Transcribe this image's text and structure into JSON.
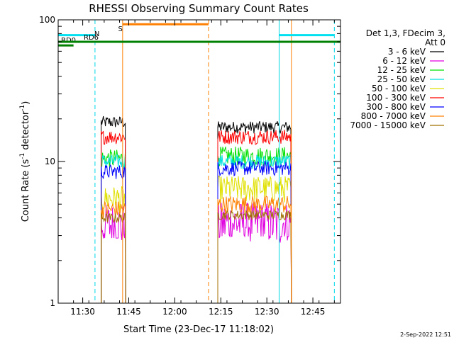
{
  "chart_data": {
    "type": "line",
    "title": "RHESSI Observing Summary Count Rates",
    "xlabel": "Start Time (23-Dec-17 11:18:02)",
    "ylabel_main": "Count Rate (s",
    "ylabel_sup1": "-1",
    "ylabel_mid": " detector",
    "ylabel_sup2": "-1",
    "ylabel_end": ")",
    "yscale": "log",
    "ylim": [
      1,
      100
    ],
    "xlim_minutes": [
      "11:22",
      "12:54"
    ],
    "x_ticks": [
      "11:30",
      "11:45",
      "12:00",
      "12:15",
      "12:30",
      "12:45"
    ],
    "y_ticks": [
      "1",
      "10",
      "100"
    ],
    "legend_header": [
      "Det 1,3, FDecim 3,",
      "Att 0"
    ],
    "legend_position": "right",
    "timestamp": "2-Sep-2022 12:51",
    "segments": [
      {
        "start": "11:36",
        "end": "11:44"
      },
      {
        "start": "12:14",
        "end": "12:38"
      }
    ],
    "series": [
      {
        "name": "3 - 6 keV",
        "color": "#000000",
        "level1": 19,
        "level2": 17.5,
        "noise": 0.1
      },
      {
        "name": "6 - 12 keV",
        "color": "#e000e0",
        "level1": 3.6,
        "level2": 3.7,
        "noise": 0.4
      },
      {
        "name": "12 - 25 keV",
        "color": "#00e000",
        "level1": 10.5,
        "level2": 11,
        "noise": 0.16
      },
      {
        "name": "25 - 50 keV",
        "color": "#00e0e0",
        "level1": 10,
        "level2": 10,
        "noise": 0.12
      },
      {
        "name": "50 - 100 keV",
        "color": "#e0e000",
        "level1": 5.5,
        "level2": 6.5,
        "noise": 0.22
      },
      {
        "name": "100 - 300 keV",
        "color": "#ff0000",
        "level1": 15,
        "level2": 15,
        "noise": 0.12
      },
      {
        "name": "300 - 800 keV",
        "color": "#0000ff",
        "level1": 8.5,
        "level2": 9,
        "noise": 0.12
      },
      {
        "name": "800 - 7000 keV",
        "color": "#ff8000",
        "level1": 4.6,
        "level2": 5,
        "noise": 0.15
      },
      {
        "name": "7000 - 15000 keV",
        "color": "#a07000",
        "level1": 4.0,
        "level2": 4.2,
        "noise": 0.08
      }
    ],
    "annotations": [
      {
        "label": "RD0",
        "color": "#008000",
        "level": 66,
        "x0": "11:22",
        "x1": "11:27"
      },
      {
        "label": "RD6",
        "color": "#008000",
        "level": 70,
        "x0": "11:22",
        "x1": "12:54"
      },
      {
        "label": "N",
        "color": "#00c0c0",
        "x": "11:34"
      },
      {
        "label": "S",
        "color": "#ff8000",
        "x": "11:42"
      }
    ],
    "shading_bars": [
      {
        "name": "night-1",
        "color": "#00e0f0",
        "level": 78,
        "x0": "11:22",
        "x1": "11:34"
      },
      {
        "name": "saa",
        "color": "#ff8000",
        "level": 93,
        "x0": "11:43",
        "x1": "12:11"
      },
      {
        "name": "night-2",
        "color": "#00e0f0",
        "level": 78,
        "x0": "12:34",
        "x1": "12:52"
      }
    ],
    "vertical_lines": [
      {
        "x": "11:22",
        "color": "#00d8e8",
        "dashed": false
      },
      {
        "x": "11:34",
        "color": "#00d8e8",
        "dashed": true
      },
      {
        "x": "11:43",
        "color": "#ff8000",
        "dashed": false
      },
      {
        "x": "12:11",
        "color": "#ff8000",
        "dashed": true
      },
      {
        "x": "12:34",
        "color": "#00d8e8",
        "dashed": false
      },
      {
        "x": "12:52",
        "color": "#00d8e8",
        "dashed": true
      },
      {
        "x": "12:38",
        "color": "#ff8000",
        "dashed": false
      }
    ]
  }
}
